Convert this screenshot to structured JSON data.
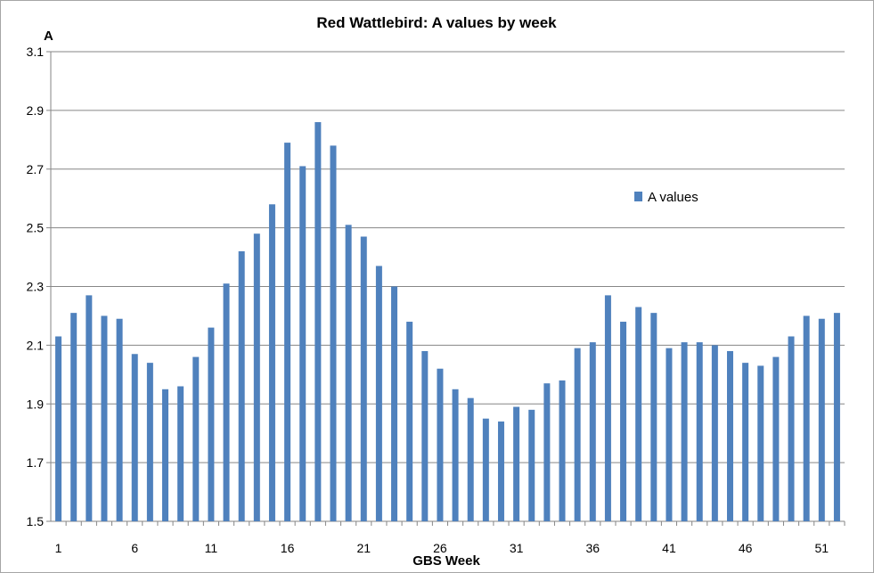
{
  "chart_data": {
    "type": "bar",
    "title": "Red Wattlebird:  A values by week",
    "xlabel": "GBS Week",
    "ylabel": "A",
    "ylim": [
      1.5,
      3.1
    ],
    "yticks": [
      "1.5",
      "1.7",
      "1.9",
      "2.1",
      "2.3",
      "2.5",
      "2.7",
      "2.9",
      "3.1"
    ],
    "xtick_labels": [
      "1",
      "6",
      "11",
      "16",
      "21",
      "26",
      "31",
      "36",
      "41",
      "46",
      "51"
    ],
    "grid": "horizontal",
    "legend_position": "right",
    "categories": [
      1,
      2,
      3,
      4,
      5,
      6,
      7,
      8,
      9,
      10,
      11,
      12,
      13,
      14,
      15,
      16,
      17,
      18,
      19,
      20,
      21,
      22,
      23,
      24,
      25,
      26,
      27,
      28,
      29,
      30,
      31,
      32,
      33,
      34,
      35,
      36,
      37,
      38,
      39,
      40,
      41,
      42,
      43,
      44,
      45,
      46,
      47,
      48,
      49,
      50,
      51,
      52
    ],
    "series": [
      {
        "name": "A values",
        "color": "#4f81bd",
        "values": [
          2.13,
          2.21,
          2.27,
          2.2,
          2.19,
          2.07,
          2.04,
          1.95,
          1.96,
          2.06,
          2.16,
          2.31,
          2.42,
          2.48,
          2.58,
          2.79,
          2.71,
          2.86,
          2.78,
          2.51,
          2.47,
          2.37,
          2.3,
          2.18,
          2.08,
          2.02,
          1.95,
          1.92,
          1.85,
          1.84,
          1.89,
          1.88,
          1.97,
          1.98,
          2.09,
          2.11,
          2.27,
          2.18,
          2.23,
          2.21,
          2.09,
          2.11,
          2.11,
          2.1,
          2.08,
          2.04,
          2.03,
          2.06,
          2.13,
          2.2,
          2.19,
          2.21
        ]
      }
    ]
  }
}
